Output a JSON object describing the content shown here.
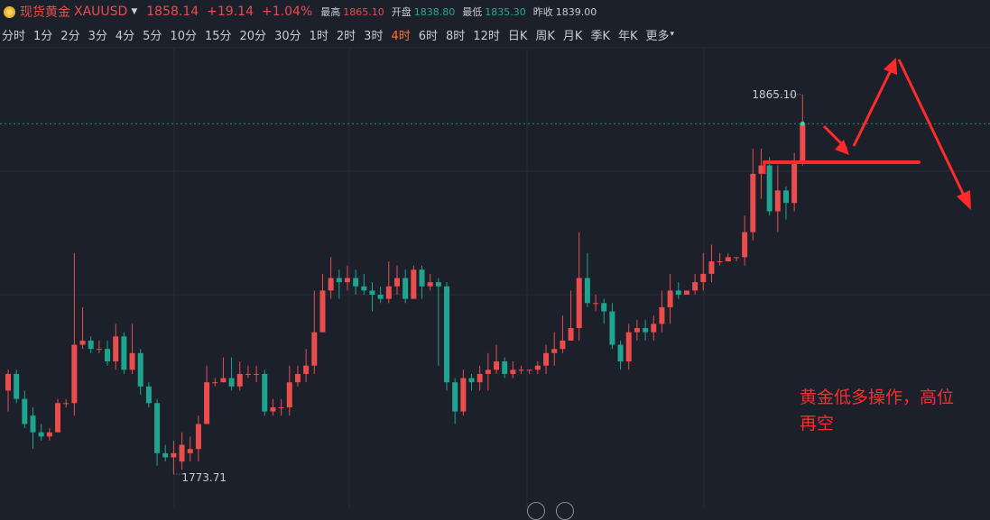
{
  "header": {
    "name": "现货黄金",
    "code": "XAUUSD",
    "price": "1858.14",
    "change": "+19.14",
    "change_pct": "+1.04%",
    "high_label": "最高",
    "high": "1865.10",
    "open_label": "开盘",
    "open": "1838.80",
    "low_label": "最低",
    "low": "1835.30",
    "prev_close_label": "昨收",
    "prev_close": "1839.00"
  },
  "timeframes": [
    {
      "label": "分时",
      "active": false
    },
    {
      "label": "1分",
      "active": false
    },
    {
      "label": "2分",
      "active": false
    },
    {
      "label": "3分",
      "active": false
    },
    {
      "label": "4分",
      "active": false
    },
    {
      "label": "5分",
      "active": false
    },
    {
      "label": "10分",
      "active": false
    },
    {
      "label": "15分",
      "active": false
    },
    {
      "label": "20分",
      "active": false
    },
    {
      "label": "30分",
      "active": false
    },
    {
      "label": "1时",
      "active": false
    },
    {
      "label": "2时",
      "active": false
    },
    {
      "label": "3时",
      "active": false
    },
    {
      "label": "4时",
      "active": true
    },
    {
      "label": "6时",
      "active": false
    },
    {
      "label": "8时",
      "active": false
    },
    {
      "label": "12时",
      "active": false
    },
    {
      "label": "日K",
      "active": false
    },
    {
      "label": "周K",
      "active": false
    },
    {
      "label": "月K",
      "active": false
    },
    {
      "label": "季K",
      "active": false
    },
    {
      "label": "年K",
      "active": false
    },
    {
      "label": "更多",
      "active": false
    }
  ],
  "colors": {
    "up": "#eb4c4c",
    "down": "#1fa58f",
    "background": "#1b202b",
    "grid": "#262c38",
    "annotation": "#ff2a2a",
    "active_tab": "#f47a2a"
  },
  "annotation": {
    "line1": "黄金低多操作，高位",
    "line2": "再空"
  },
  "chart_data": {
    "type": "candlestick",
    "symbol": "XAUUSD",
    "interval": "4时",
    "ylim": [
      1766,
      1876
    ],
    "high_marker": "1865.10",
    "low_marker": "1773.71",
    "candles": [
      [
        1794,
        1798,
        1799,
        1789
      ],
      [
        1798,
        1792,
        1799,
        1791
      ],
      [
        1792,
        1786,
        1794,
        1785
      ],
      [
        1788,
        1784,
        1790,
        1780
      ],
      [
        1784,
        1783,
        1786,
        1782
      ],
      [
        1783,
        1784,
        1785,
        1782
      ],
      [
        1784,
        1791,
        1792,
        1784
      ],
      [
        1791,
        1791,
        1792,
        1790
      ],
      [
        1791,
        1805,
        1827,
        1788
      ],
      [
        1805,
        1806,
        1814,
        1804
      ],
      [
        1806,
        1804,
        1807,
        1803
      ],
      [
        1804,
        1804,
        1806,
        1803
      ],
      [
        1804,
        1801,
        1806,
        1800
      ],
      [
        1801,
        1807,
        1810,
        1799
      ],
      [
        1807,
        1799,
        1808,
        1798
      ],
      [
        1799,
        1803,
        1810,
        1798
      ],
      [
        1803,
        1795,
        1804,
        1793
      ],
      [
        1795,
        1791,
        1796,
        1790
      ],
      [
        1791,
        1779,
        1792,
        1776
      ],
      [
        1779,
        1778,
        1781,
        1777
      ],
      [
        1778,
        1779,
        1782,
        1774
      ],
      [
        1777,
        1781,
        1784,
        1775
      ],
      [
        1779,
        1780,
        1783,
        1777
      ],
      [
        1780,
        1786,
        1788,
        1777
      ],
      [
        1786,
        1796,
        1800,
        1786
      ],
      [
        1796,
        1796,
        1797,
        1795
      ],
      [
        1796,
        1797,
        1802,
        1796
      ],
      [
        1797,
        1795,
        1802,
        1794
      ],
      [
        1795,
        1798,
        1801,
        1794
      ],
      [
        1798,
        1798,
        1800,
        1797
      ],
      [
        1798,
        1798,
        1800,
        1796
      ],
      [
        1798,
        1789,
        1799,
        1788
      ],
      [
        1789,
        1790,
        1792,
        1788
      ],
      [
        1790,
        1790,
        1792,
        1788
      ],
      [
        1790,
        1796,
        1800,
        1788
      ],
      [
        1796,
        1798,
        1800,
        1795
      ],
      [
        1798,
        1800,
        1804,
        1796
      ],
      [
        1800,
        1808,
        1818,
        1798
      ],
      [
        1808,
        1818,
        1822,
        1808
      ],
      [
        1818,
        1821,
        1826,
        1816
      ],
      [
        1821,
        1820,
        1823,
        1816
      ],
      [
        1820,
        1821,
        1824,
        1818
      ],
      [
        1821,
        1819,
        1823,
        1817
      ],
      [
        1819,
        1818,
        1822,
        1817
      ],
      [
        1818,
        1817,
        1820,
        1813
      ],
      [
        1817,
        1816,
        1819,
        1815
      ],
      [
        1816,
        1819,
        1825,
        1815
      ],
      [
        1819,
        1821,
        1824,
        1817
      ],
      [
        1821,
        1816,
        1823,
        1815
      ],
      [
        1816,
        1823,
        1824,
        1816
      ],
      [
        1823,
        1819,
        1824,
        1816
      ],
      [
        1819,
        1820,
        1822,
        1818
      ],
      [
        1820,
        1819,
        1821,
        1800
      ],
      [
        1819,
        1796,
        1820,
        1794
      ],
      [
        1796,
        1789,
        1797,
        1786
      ],
      [
        1789,
        1797,
        1799,
        1788
      ],
      [
        1797,
        1796,
        1798,
        1794
      ],
      [
        1796,
        1798,
        1800,
        1794
      ],
      [
        1798,
        1799,
        1803,
        1794
      ],
      [
        1799,
        1801,
        1805,
        1798
      ],
      [
        1801,
        1798,
        1802,
        1797
      ],
      [
        1798,
        1799,
        1801,
        1797
      ],
      [
        1799,
        1799,
        1800,
        1798
      ],
      [
        1799,
        1799,
        1799,
        1798
      ],
      [
        1799,
        1800,
        1801,
        1798
      ],
      [
        1800,
        1803,
        1805,
        1798
      ],
      [
        1803,
        1804,
        1808,
        1800
      ],
      [
        1804,
        1806,
        1812,
        1803
      ],
      [
        1806,
        1809,
        1818,
        1806
      ],
      [
        1809,
        1821,
        1832,
        1806
      ],
      [
        1821,
        1815,
        1827,
        1814
      ],
      [
        1815,
        1815,
        1817,
        1813
      ],
      [
        1815,
        1813,
        1816,
        1810
      ],
      [
        1813,
        1805,
        1815,
        1804
      ],
      [
        1805,
        1801,
        1806,
        1799
      ],
      [
        1801,
        1808,
        1810,
        1799
      ],
      [
        1808,
        1809,
        1811,
        1806
      ],
      [
        1809,
        1808,
        1811,
        1806
      ],
      [
        1808,
        1810,
        1812,
        1806
      ],
      [
        1810,
        1814,
        1818,
        1808
      ],
      [
        1814,
        1818,
        1822,
        1810
      ],
      [
        1818,
        1817,
        1820,
        1816
      ],
      [
        1817,
        1818,
        1818,
        1817
      ],
      [
        1818,
        1820,
        1822,
        1817
      ],
      [
        1820,
        1822,
        1827,
        1818
      ],
      [
        1822,
        1825,
        1829,
        1820
      ],
      [
        1825,
        1825,
        1827,
        1824
      ],
      [
        1825,
        1826,
        1827,
        1825
      ],
      [
        1826,
        1826,
        1826,
        1825
      ],
      [
        1826,
        1832,
        1836,
        1824
      ],
      [
        1832,
        1846,
        1852,
        1830
      ],
      [
        1846,
        1848,
        1852,
        1840
      ],
      [
        1848,
        1837,
        1850,
        1836
      ],
      [
        1837,
        1842,
        1848,
        1832
      ],
      [
        1842,
        1839,
        1843,
        1835
      ],
      [
        1839,
        1849,
        1851,
        1837
      ],
      [
        1849,
        1858,
        1865,
        1848
      ]
    ]
  }
}
